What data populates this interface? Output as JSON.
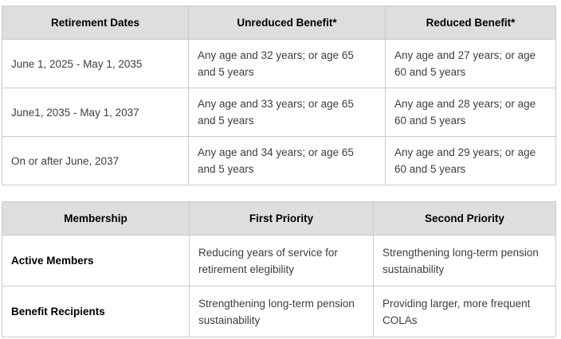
{
  "colors": {
    "header_background": "#dedede",
    "border": "#cbcbcb",
    "header_text": "#000000",
    "body_text": "#3d3d3d",
    "page_background": "#ffffff"
  },
  "tables": [
    {
      "name": "retirement-benefits",
      "headers": [
        "Retirement Dates",
        "Unreduced Benefit*",
        "Reduced Benefit*"
      ],
      "rows": [
        [
          "June 1, 2025 - May 1, 2035",
          "Any age and 32 years; or age 65 and 5 years",
          "Any age and 27 years; or age 60 and 5 years"
        ],
        [
          "June1, 2035 - May 1, 2037",
          "Any age and 33 years; or age 65 and 5 years",
          "Any age and 28 years; or age 60 and 5 years"
        ],
        [
          "On or after June, 2037",
          "Any age and 34 years; or age 65 and 5 years",
          "Any age and 29 years; or age 60 and 5 years"
        ]
      ]
    },
    {
      "name": "membership-priorities",
      "headers": [
        "Membership",
        "First Priority",
        "Second Priority"
      ],
      "rows": [
        [
          "Active Members",
          "Reducing years of service for retirement elegibility",
          "Strengthening long-term pension sustainability"
        ],
        [
          "Benefit Recipients",
          "Strengthening long-term pension sustainability",
          "Providing larger, more frequent COLAs"
        ]
      ]
    }
  ]
}
